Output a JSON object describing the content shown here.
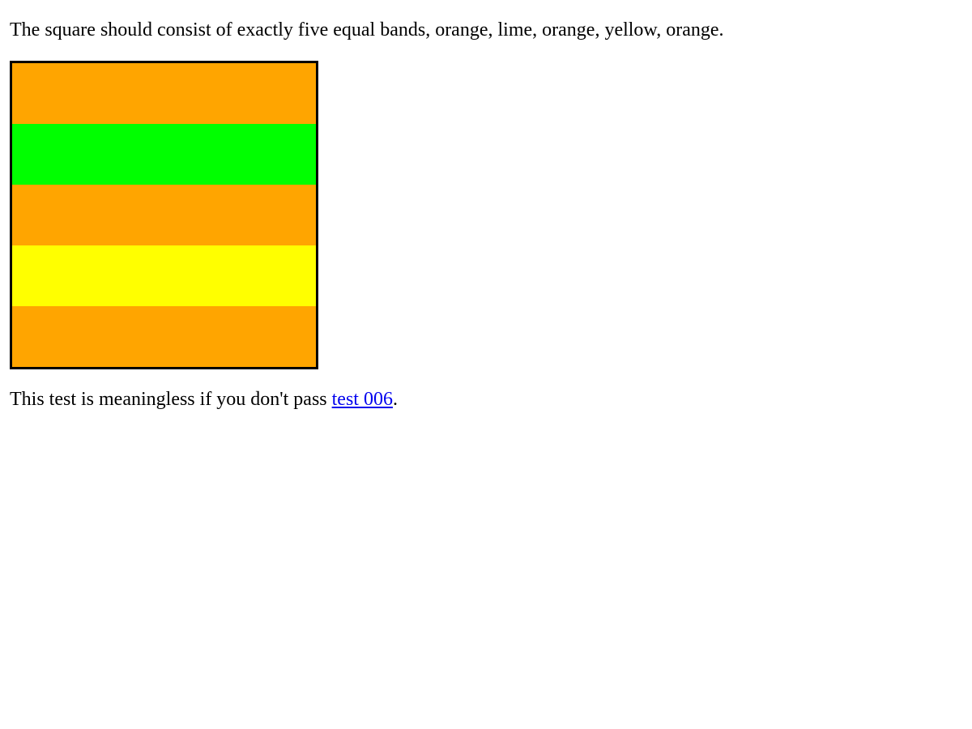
{
  "instruction": {
    "text": "The square should consist of exactly five equal bands, orange, lime, orange, yellow, orange."
  },
  "square": {
    "border_color": "#000000",
    "bands": [
      {
        "color": "#ffa500"
      },
      {
        "color": "#00ff00"
      },
      {
        "color": "#ffa500"
      },
      {
        "color": "#ffff00"
      },
      {
        "color": "#ffa500"
      }
    ]
  },
  "footnote": {
    "prefix": "This test is meaningless if you don't pass ",
    "link_text": "test 006",
    "suffix": "."
  },
  "colors": {
    "link": "#0000ee",
    "text": "#000000",
    "background": "#ffffff"
  }
}
